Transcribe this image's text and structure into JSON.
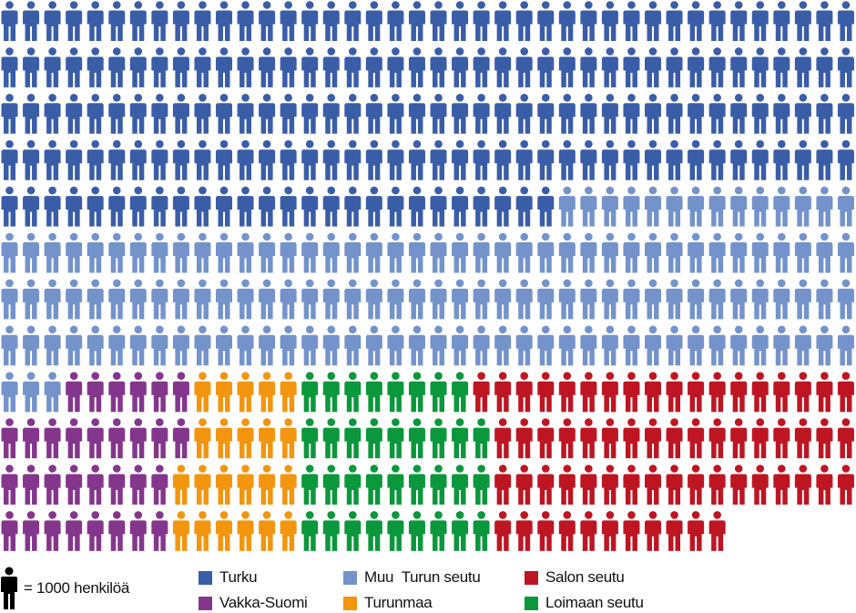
{
  "chart_data": {
    "type": "pictogram",
    "unit_label": "= 1000 henkilöä",
    "unit_value": 1000,
    "per_row": 40,
    "categories": [
      {
        "key": "turku",
        "name": "Turku",
        "color": "#3a5da8",
        "value": 186
      },
      {
        "key": "muu",
        "name": "Muu  Turun seutu",
        "color": "#7493cb",
        "value": 137
      },
      {
        "key": "salo",
        "name": "Salon seutu",
        "color": "#bd1622",
        "value": 63
      },
      {
        "key": "vakka",
        "name": "Vakka-Suomi",
        "color": "#84368c",
        "value": 31
      },
      {
        "key": "turunmaa",
        "name": "Turunmaa",
        "color": "#f3950f",
        "value": 22
      },
      {
        "key": "loimaa",
        "name": "Loimaan seutu",
        "color": "#0b973b",
        "value": 35
      }
    ],
    "rows": [
      [
        [
          "turku",
          40
        ]
      ],
      [
        [
          "turku",
          40
        ]
      ],
      [
        [
          "turku",
          40
        ]
      ],
      [
        [
          "turku",
          40
        ]
      ],
      [
        [
          "turku",
          26
        ],
        [
          "muu",
          14
        ]
      ],
      [
        [
          "muu",
          40
        ]
      ],
      [
        [
          "muu",
          40
        ]
      ],
      [
        [
          "muu",
          40
        ]
      ],
      [
        [
          "muu",
          3
        ],
        [
          "vakka",
          6
        ],
        [
          "turunmaa",
          5
        ],
        [
          "loimaa",
          8
        ],
        [
          "salo",
          18
        ]
      ],
      [
        [
          "vakka",
          9
        ],
        [
          "turunmaa",
          5
        ],
        [
          "loimaa",
          9
        ],
        [
          "salo",
          17
        ]
      ],
      [
        [
          "vakka",
          8
        ],
        [
          "turunmaa",
          6
        ],
        [
          "loimaa",
          9
        ],
        [
          "salo",
          17
        ]
      ],
      [
        [
          "vakka",
          8
        ],
        [
          "turunmaa",
          6
        ],
        [
          "loimaa",
          9
        ],
        [
          "salo",
          11
        ]
      ]
    ]
  }
}
